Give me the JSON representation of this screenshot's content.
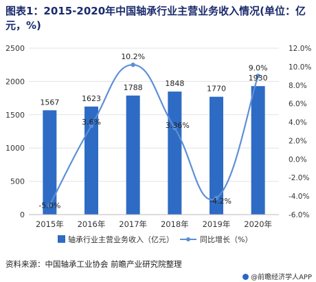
{
  "title": "图表1：2015-2020年中国轴承行业主营业务收入情况(单位：亿元，%)",
  "source": "资料来源：中国轴承工业协会 前瞻产业研究院整理",
  "footer": {
    "brand": "@前瞻经济学人APP",
    "icon": "brand-dot-icon"
  },
  "chart_data": {
    "type": "bar",
    "categories": [
      "2015年",
      "2016年",
      "2017年",
      "2018年",
      "2019年",
      "2020年"
    ],
    "series": [
      {
        "name": "轴承行业主营业务收入（亿元）",
        "type": "bar",
        "axis": "left",
        "values": [
          1567,
          1623,
          1788,
          1848,
          1770,
          1930
        ],
        "labels": [
          "1567",
          "1623",
          "1788",
          "1848",
          "1770",
          "1930"
        ],
        "color": "#2e6bc4"
      },
      {
        "name": "同比增长（%）",
        "type": "line",
        "axis": "right",
        "values": [
          -5.0,
          3.6,
          10.2,
          3.36,
          -4.2,
          9.0
        ],
        "labels": [
          "-5.0%",
          "3.6%",
          "10.2%",
          "3.36%",
          "-4.2%",
          "9.0%"
        ],
        "color": "#5b8fd6"
      }
    ],
    "ylim_left": [
      0,
      2500
    ],
    "yticks_left": [
      "0",
      "500",
      "1000",
      "1500",
      "2000",
      "2500"
    ],
    "ylim_right": [
      -6,
      12
    ],
    "yticks_right": [
      "-6.0%",
      "-4.0%",
      "-2.0%",
      "0.0%",
      "2.0%",
      "4.0%",
      "6.0%",
      "8.0%",
      "10.0%",
      "12.0%"
    ],
    "grid": true,
    "legend": "bottom"
  }
}
